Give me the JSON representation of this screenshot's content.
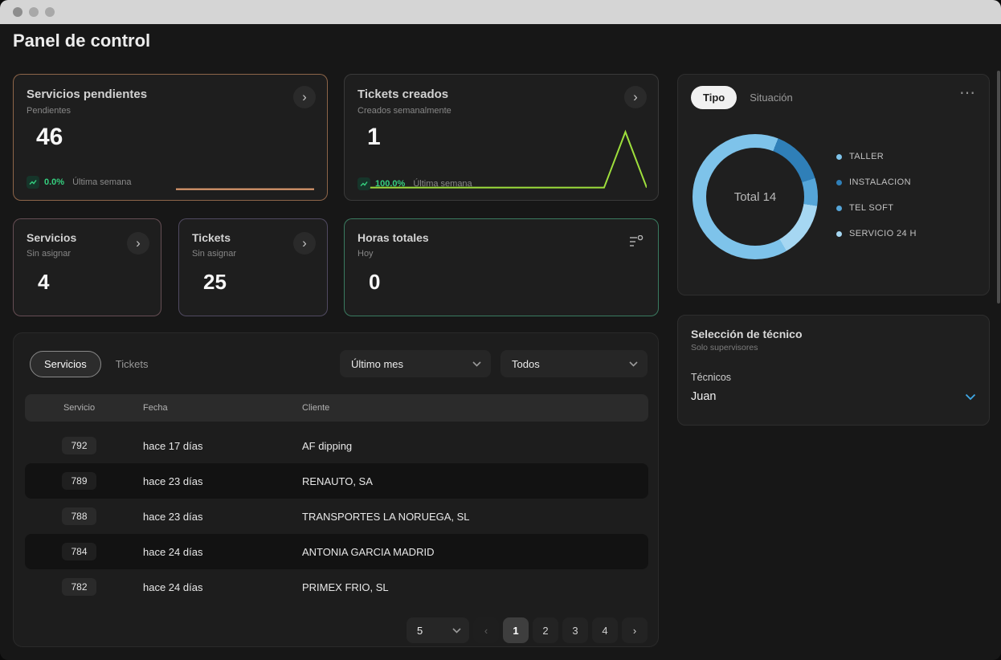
{
  "window": {
    "title": "Panel de control"
  },
  "icons": {
    "chevron_right": "›",
    "chevron_left": "‹",
    "more_options": "⋯"
  },
  "stat_cards": {
    "servicios_pendientes": {
      "title": "Servicios pendientes",
      "subtitle": "Pendientes",
      "value": "46",
      "delta": "0.0%",
      "delta_note": "Última semana",
      "accent": "#eba374",
      "spark": [
        46,
        46,
        46,
        46,
        46,
        46,
        46,
        46
      ]
    },
    "tickets_creados": {
      "title": "Tickets creados",
      "subtitle": "Creados semanalmente",
      "value": "1",
      "delta": "100.0%",
      "delta_note": "Última semana",
      "accent": "#9edf3c",
      "spark": [
        0,
        0,
        0,
        0,
        0,
        0,
        0,
        0,
        0,
        0,
        0,
        0,
        1,
        0
      ]
    },
    "servicios": {
      "title": "Servicios",
      "subtitle": "Sin asignar",
      "value": "4"
    },
    "tickets": {
      "title": "Tickets",
      "subtitle": "Sin asignar",
      "value": "25"
    },
    "horas_totales": {
      "title": "Horas totales",
      "subtitle": "Hoy",
      "value": "0"
    }
  },
  "type_chart": {
    "tabs": {
      "tipo": "Tipo",
      "situacion": "Situación"
    },
    "center_label": "Total 14",
    "total": 14,
    "segments": [
      {
        "label": "TALLER",
        "value": 9,
        "color": "#7ec3ea"
      },
      {
        "label": "INSTALACION",
        "value": 2,
        "color": "#2f7fb8"
      },
      {
        "label": "TEL SOFT",
        "value": 1,
        "color": "#55a5d8"
      },
      {
        "label": "SERVICIO 24 H",
        "value": 2,
        "color": "#a6d7f2"
      }
    ]
  },
  "technician": {
    "title": "Selección de técnico",
    "subtitle": "Solo supervisores",
    "label": "Técnicos",
    "selected": "Juan"
  },
  "table": {
    "tabs": {
      "servicios": "Servicios",
      "tickets": "Tickets"
    },
    "filters": {
      "period": "Último mes",
      "scope": "Todos"
    },
    "columns": {
      "servicio": "Servicio",
      "fecha": "Fecha",
      "cliente": "Cliente"
    },
    "rows": [
      {
        "servicio": "792",
        "fecha": "hace 17 días",
        "cliente": "AF dipping"
      },
      {
        "servicio": "789",
        "fecha": "hace 23 días",
        "cliente": "RENAUTO, SA"
      },
      {
        "servicio": "788",
        "fecha": "hace 23 días",
        "cliente": "TRANSPORTES LA NORUEGA, SL"
      },
      {
        "servicio": "784",
        "fecha": "hace 24 días",
        "cliente": "ANTONIA GARCIA MADRID"
      },
      {
        "servicio": "782",
        "fecha": "hace 24 días",
        "cliente": "PRIMEX FRIO, SL"
      }
    ],
    "pagination": {
      "page_size": "5",
      "pages": [
        "1",
        "2",
        "3",
        "4"
      ],
      "active_page": "1"
    }
  },
  "chart_data": [
    {
      "type": "pie",
      "title": "Tipo",
      "labels": [
        "TALLER",
        "INSTALACION",
        "TEL SOFT",
        "SERVICIO 24 H"
      ],
      "values": [
        9,
        2,
        1,
        2
      ],
      "total_label": "Total 14",
      "legend_position": "right"
    },
    {
      "type": "line",
      "title": "Tickets creados - Creados semanalmente",
      "values": [
        0,
        0,
        0,
        0,
        0,
        0,
        0,
        0,
        0,
        0,
        0,
        0,
        1,
        0
      ],
      "ylim": [
        0,
        1
      ]
    },
    {
      "type": "line",
      "title": "Servicios pendientes - Pendientes",
      "values": [
        46,
        46,
        46,
        46,
        46,
        46,
        46,
        46
      ],
      "ylim": [
        0,
        46
      ]
    }
  ]
}
